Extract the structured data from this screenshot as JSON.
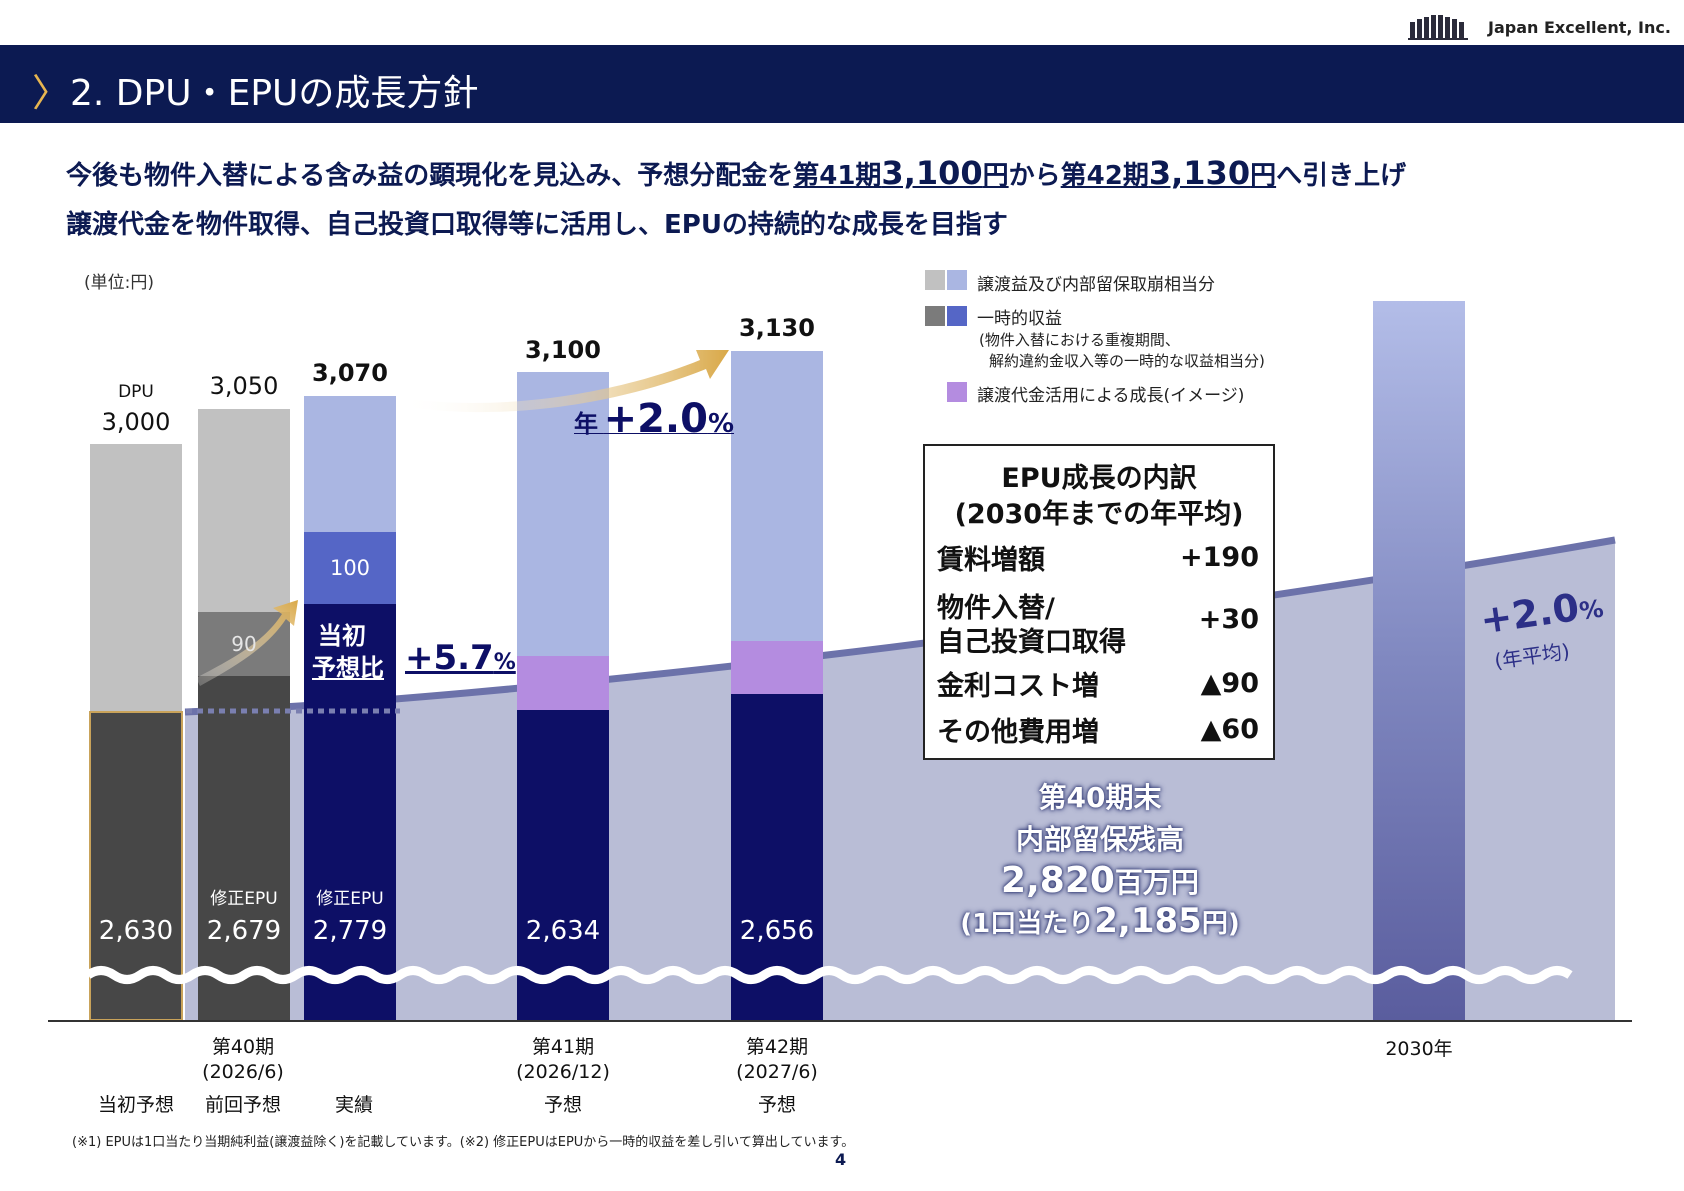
{
  "company": "Japan Excellent, Inc.",
  "header": {
    "title": "2. DPU・EPUの成長方針"
  },
  "lead": {
    "l1_a": "今後も物件入替による含み益の顕現化を見込み、予想分配金を",
    "l1_p41": "第41期",
    "l1_v41": "3,100",
    "l1_yen1": "円",
    "l1_mid": "から",
    "l1_p42": "第42期",
    "l1_v42": "3,130",
    "l1_yen2": "円",
    "l1_end": "へ引き上げ",
    "l2": "譲渡代金を物件取得、自己投資口取得等に活用し、EPUの持続的な成長を目指す"
  },
  "unit": "(単位:円)",
  "legend": {
    "gain": "譲渡益及び内部留保取崩相当分",
    "temp": "一時的収益",
    "temp_note1": "(物件入替における重複期間、",
    "temp_note2": "解約違約金収入等の一時的な収益相当分)",
    "growth": "譲渡代金活用による成長(イメージ)"
  },
  "chart_data": {
    "type": "bar",
    "stacked": true,
    "categories": [
      "当初予想",
      "第40期 (2026/6) 前回予想",
      "実績",
      "第41期 (2026/12) 予想",
      "第42期 (2027/6) 予想",
      "2030年"
    ],
    "dpu_totals": [
      3000,
      3050,
      3070,
      3100,
      3130,
      null
    ],
    "epu_values": [
      2630,
      2679,
      2779,
      2634,
      2656,
      null
    ],
    "temporary_income": [
      null,
      90,
      100,
      null,
      null,
      null
    ],
    "value_labels": {
      "dpu_label": "DPU",
      "t0": "3,000",
      "t1": "3,050",
      "t2": "3,070",
      "t3": "3,100",
      "t4": "3,130",
      "e0": "2,630",
      "e1": "2,679",
      "e2": "2,779",
      "e3": "2,634",
      "e4": "2,656",
      "temp1": "90",
      "temp2": "100",
      "rev_epu": "修正EPU"
    },
    "category_labels": {
      "p40": "第40期",
      "p40d": "(2026/6)",
      "initial": "当初予想",
      "previous": "前回予想",
      "actual": "実績",
      "p41": "第41期",
      "p41d": "(2026/12)",
      "p41f": "予想",
      "p42": "第42期",
      "p42d": "(2027/6)",
      "p42f": "予想",
      "y2030": "2030年"
    },
    "annotations": {
      "vs_initial_1": "当初",
      "vs_initial_2": "予想比",
      "vs_initial_val": "+5.7",
      "pct": "%",
      "annual_prefix": "年",
      "annual_val": "+2.0",
      "avg_val": "+2.0",
      "avg_note": "(年平均)"
    },
    "colors": {
      "gray_light": "#c1c1c1",
      "gray_mid": "#7b7b7b",
      "gray_dark": "#474747",
      "blue_light": "#aab6e2",
      "blue_mid": "#5566c6",
      "navy": "#0d0f66",
      "purple": "#b48ce0",
      "area": "#b9bdd6"
    }
  },
  "breakdown": {
    "title1": "EPU成長の内訳",
    "title2": "(2030年までの年平均)",
    "rows": [
      {
        "label": "賃料増額",
        "value": "+190"
      },
      {
        "label": "物件入替/",
        "label2": "自己投資口取得",
        "value": "+30"
      },
      {
        "label": "金利コスト増",
        "value": "▲90"
      },
      {
        "label": "その他費用増",
        "value": "▲60"
      }
    ]
  },
  "retained": {
    "line1": "第40期末",
    "line2": "内部留保残高",
    "amount": "2,820",
    "amount_unit": "百万円",
    "per_unit_a": "(1口当たり",
    "per_unit_b": "2,185",
    "per_unit_c": "円)"
  },
  "footnote": "(※1) EPUは1口当たり当期純利益(譲渡益除く)を記載しています。(※2) 修正EPUはEPUから一時的収益を差し引いて算出しています。",
  "page_number": "4"
}
